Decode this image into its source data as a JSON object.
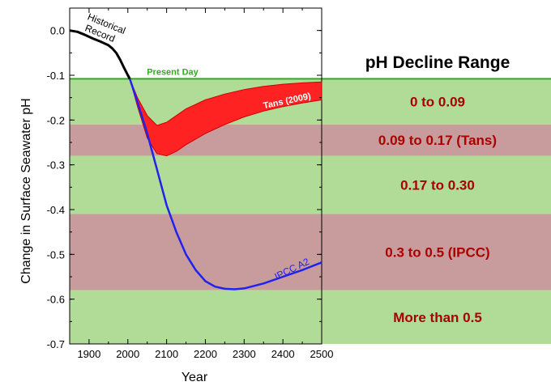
{
  "chart_data": {
    "type": "line",
    "xlabel": "Year",
    "ylabel": "Change in Surface Seawater pH",
    "xlim": [
      1850,
      2500
    ],
    "ylim": [
      -0.7,
      0.05
    ],
    "x_ticks": [
      "1900",
      "2000",
      "2100",
      "2200",
      "2300",
      "2400",
      "2500"
    ],
    "y_ticks": [
      "0.0",
      "-0.1",
      "-0.2",
      "-0.3",
      "-0.4",
      "-0.5",
      "-0.6",
      "-0.7"
    ],
    "present_day": {
      "label": "Present Day",
      "value": -0.108,
      "color": "#33aa22"
    },
    "bands": [
      {
        "from": -0.108,
        "to": -0.21,
        "label": "0 to 0.09",
        "color": "#b0dc98"
      },
      {
        "from": -0.21,
        "to": -0.28,
        "label": "0.09 to 0.17 (Tans)",
        "color": "#c89c9c"
      },
      {
        "from": -0.28,
        "to": -0.41,
        "label": "0.17 to 0.30",
        "color": "#b0dc98"
      },
      {
        "from": -0.41,
        "to": -0.58,
        "label": "0.3 to 0.5 (IPCC)",
        "color": "#c89c9c"
      },
      {
        "from": -0.58,
        "to": -0.7,
        "label": "More than 0.5",
        "color": "#b0dc98"
      }
    ],
    "label_color": "#aa0000",
    "series": [
      {
        "name": "Historical Record",
        "color": "#000000",
        "x": [
          1850,
          1870,
          1890,
          1910,
          1930,
          1950,
          1960,
          1970,
          1980,
          1990,
          2000,
          2005
        ],
        "y": [
          0.0,
          -0.003,
          -0.01,
          -0.018,
          -0.025,
          -0.033,
          -0.04,
          -0.05,
          -0.065,
          -0.083,
          -0.1,
          -0.108
        ]
      },
      {
        "name": "IPCC A2",
        "color": "#2222ee",
        "x": [
          2005,
          2025,
          2050,
          2075,
          2100,
          2125,
          2150,
          2175,
          2200,
          2225,
          2250,
          2275,
          2300,
          2350,
          2400,
          2450,
          2500
        ],
        "y": [
          -0.108,
          -0.16,
          -0.23,
          -0.31,
          -0.39,
          -0.45,
          -0.5,
          -0.535,
          -0.56,
          -0.572,
          -0.577,
          -0.578,
          -0.576,
          -0.565,
          -0.55,
          -0.535,
          -0.518
        ]
      },
      {
        "name": "Tans (2009)",
        "color": "#ff2222",
        "x": [
          2005,
          2025,
          2050,
          2075,
          2100,
          2125,
          2150,
          2200,
          2250,
          2300,
          2350,
          2400,
          2450,
          2500
        ],
        "upper": [
          -0.108,
          -0.15,
          -0.19,
          -0.212,
          -0.205,
          -0.19,
          -0.175,
          -0.155,
          -0.142,
          -0.132,
          -0.125,
          -0.12,
          -0.117,
          -0.115
        ],
        "lower": [
          -0.108,
          -0.17,
          -0.24,
          -0.275,
          -0.28,
          -0.27,
          -0.255,
          -0.23,
          -0.21,
          -0.193,
          -0.18,
          -0.17,
          -0.162,
          -0.155
        ]
      }
    ],
    "panel_title": "pH Decline Range"
  }
}
